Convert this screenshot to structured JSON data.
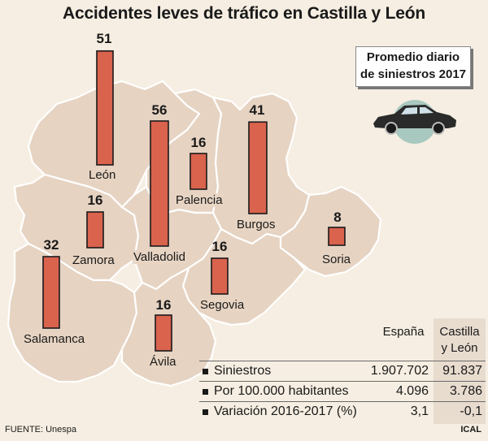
{
  "title": "Accidentes leves de tráfico en Castilla y León",
  "legend": {
    "line1": "Promedio diario",
    "line2": "de siniestros 2017"
  },
  "colors": {
    "bar": "#d9634d",
    "province": "#e6d3c2",
    "background": "#f6eee2"
  },
  "icons": [
    "car-icon"
  ],
  "provinces": [
    {
      "name": "León",
      "value": "51"
    },
    {
      "name": "Valladolid",
      "value": "56"
    },
    {
      "name": "Palencia",
      "value": "16"
    },
    {
      "name": "Burgos",
      "value": "41"
    },
    {
      "name": "Zamora",
      "value": "16"
    },
    {
      "name": "Soria",
      "value": "8"
    },
    {
      "name": "Salamanca",
      "value": "32"
    },
    {
      "name": "Segovia",
      "value": "16"
    },
    {
      "name": "Ávila",
      "value": "16"
    }
  ],
  "stats": {
    "col_espana": "España",
    "col_cyl_line1": "Castilla",
    "col_cyl_line2": "y León",
    "rows": [
      {
        "label": "Siniestros",
        "espana": "1.907.702",
        "cyl": "91.837"
      },
      {
        "label": "Por 100.000 habitantes",
        "espana": "4.096",
        "cyl": "3.786"
      },
      {
        "label": "Variación 2016-2017 (%)",
        "espana": "3,1",
        "cyl": "-0,1"
      }
    ]
  },
  "source": "FUENTE: Unespa",
  "credit": "ICAL"
}
